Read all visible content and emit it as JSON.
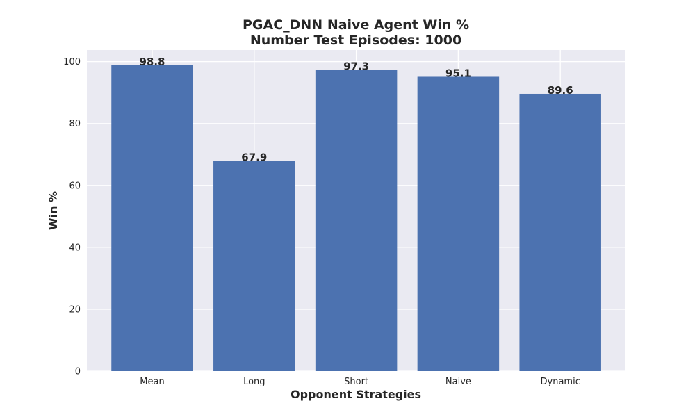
{
  "chart_data": {
    "type": "bar",
    "title": [
      "PGAC_DNN Naive Agent Win %",
      "Number Test Episodes: 1000"
    ],
    "xlabel": "Opponent Strategies",
    "ylabel": "Win %",
    "categories": [
      "Mean",
      "Long",
      "Short",
      "Naive",
      "Dynamic"
    ],
    "values": [
      98.8,
      67.9,
      97.3,
      95.1,
      89.6
    ],
    "data_labels": [
      "98.8",
      "67.9",
      "97.3",
      "95.1",
      "89.6"
    ],
    "yticks": [
      0,
      20,
      40,
      60,
      80,
      100
    ],
    "ylim": [
      0,
      103.74
    ],
    "grid": true,
    "colors": {
      "bar": "#4c72b0",
      "plot_background": "#eaeaf2",
      "grid": "#ffffff",
      "text": "#262626"
    }
  }
}
